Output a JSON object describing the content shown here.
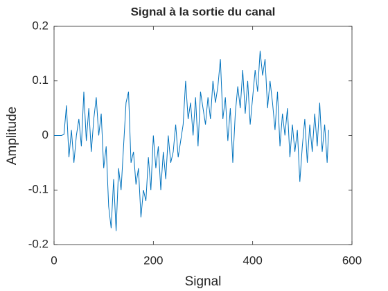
{
  "chart_data": {
    "type": "line",
    "title": "Signal à la sortie du canal",
    "xlabel": "Signal",
    "ylabel": "Amplitude",
    "x": [
      0,
      5,
      10,
      15,
      20,
      25,
      30,
      35,
      40,
      45,
      50,
      55,
      60,
      65,
      70,
      75,
      80,
      85,
      90,
      95,
      100,
      105,
      110,
      115,
      120,
      125,
      130,
      135,
      140,
      145,
      150,
      155,
      160,
      165,
      170,
      175,
      180,
      185,
      190,
      195,
      200,
      205,
      210,
      215,
      220,
      225,
      230,
      235,
      240,
      245,
      250,
      255,
      260,
      265,
      270,
      275,
      280,
      285,
      290,
      295,
      300,
      305,
      310,
      315,
      320,
      325,
      330,
      335,
      340,
      345,
      350,
      355,
      360,
      365,
      370,
      375,
      380,
      385,
      390,
      395,
      400,
      405,
      410,
      415,
      420,
      425,
      430,
      435,
      440,
      445,
      450,
      455,
      460,
      465,
      470,
      475,
      480,
      485,
      490,
      495,
      500,
      505,
      510,
      515,
      520,
      525,
      530,
      535,
      540,
      545,
      550,
      553
    ],
    "values": [
      0,
      0,
      0,
      0,
      0.002,
      0.055,
      -0.04,
      0.01,
      -0.05,
      0.0,
      0.03,
      -0.02,
      0.08,
      -0.01,
      0.05,
      -0.03,
      0.03,
      0.07,
      0.0,
      0.04,
      -0.06,
      -0.02,
      -0.13,
      -0.17,
      -0.08,
      -0.175,
      -0.06,
      -0.1,
      -0.02,
      0.06,
      0.08,
      -0.05,
      -0.03,
      -0.09,
      -0.06,
      -0.15,
      -0.1,
      -0.12,
      -0.04,
      -0.1,
      0.0,
      -0.06,
      -0.02,
      -0.1,
      -0.03,
      -0.08,
      0.0,
      -0.05,
      -0.03,
      0.02,
      -0.04,
      -0.01,
      0.02,
      0.1,
      0.03,
      0.06,
      0.0,
      0.07,
      -0.02,
      0.08,
      0.05,
      0.02,
      0.07,
      0.03,
      0.1,
      0.06,
      0.09,
      0.14,
      0.03,
      0.07,
      -0.01,
      0.05,
      -0.05,
      0.04,
      0.09,
      0.05,
      0.12,
      0.04,
      0.1,
      0.02,
      0.07,
      0.12,
      0.08,
      0.155,
      0.11,
      0.14,
      0.05,
      0.1,
      0.06,
      0.01,
      0.08,
      -0.02,
      0.04,
      0.0,
      0.05,
      -0.04,
      0.02,
      -0.03,
      0.01,
      -0.085,
      -0.02,
      0.03,
      -0.05,
      0.02,
      -0.03,
      0.04,
      -0.02,
      0.06,
      -0.03,
      0.02,
      -0.05,
      0.01
    ],
    "color": "#0072bd",
    "xlim": [
      0,
      600
    ],
    "xticks": [
      0,
      200,
      400,
      600
    ],
    "ylim": [
      -0.2,
      0.2
    ],
    "yticks": [
      -0.2,
      -0.1,
      0,
      0.1,
      0.2
    ]
  }
}
